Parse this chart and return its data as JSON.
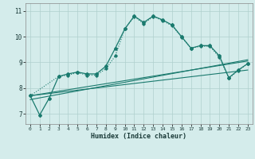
{
  "xlabel": "Humidex (Indice chaleur)",
  "background_color": "#d4eceb",
  "grid_color": "#afd0cd",
  "line_color": "#1a7a6e",
  "xlim": [
    -0.5,
    23.5
  ],
  "ylim": [
    6.6,
    11.3
  ],
  "xticks": [
    0,
    1,
    2,
    3,
    4,
    5,
    6,
    7,
    8,
    9,
    10,
    11,
    12,
    13,
    14,
    15,
    16,
    17,
    18,
    19,
    20,
    21,
    22,
    23
  ],
  "yticks": [
    7,
    8,
    9,
    10,
    11
  ],
  "curve1_x": [
    0,
    1,
    2,
    3,
    4,
    5,
    6,
    7,
    8,
    9,
    10,
    11,
    12,
    13,
    14,
    15,
    16,
    17,
    18,
    19,
    20,
    21,
    22,
    23
  ],
  "curve1_y": [
    7.7,
    6.95,
    7.6,
    8.45,
    8.55,
    8.62,
    8.55,
    8.55,
    8.85,
    9.55,
    10.3,
    10.8,
    10.55,
    10.8,
    10.65,
    10.45,
    10.0,
    9.55,
    9.65,
    9.65,
    9.25,
    8.4,
    8.7,
    8.95
  ],
  "curve2_x": [
    0,
    3,
    4,
    5,
    6,
    7,
    8,
    9,
    10,
    11,
    12,
    13,
    14,
    15,
    16,
    17,
    18,
    19,
    20,
    21,
    22,
    23
  ],
  "curve2_y": [
    7.7,
    8.45,
    8.5,
    8.6,
    8.5,
    8.5,
    8.75,
    9.25,
    10.3,
    10.78,
    10.5,
    10.78,
    10.62,
    10.42,
    9.98,
    9.55,
    9.62,
    9.62,
    9.2,
    8.38,
    8.68,
    8.95
  ],
  "line1_x": [
    0,
    23
  ],
  "line1_y": [
    7.7,
    8.7
  ],
  "line2_x": [
    0,
    23
  ],
  "line2_y": [
    7.55,
    9.1
  ],
  "line3_x": [
    0,
    23
  ],
  "line3_y": [
    7.7,
    9.05
  ]
}
